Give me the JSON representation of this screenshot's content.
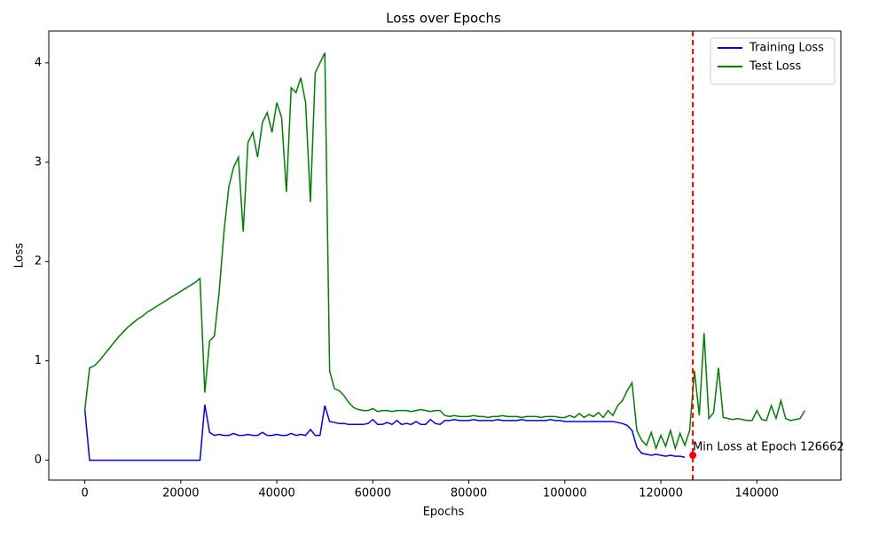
{
  "chart_data": {
    "type": "line",
    "title": "Loss over Epochs",
    "x_label": "Epochs",
    "y_label": "Loss",
    "x": [
      0,
      1000,
      2000,
      3000,
      4000,
      5000,
      6000,
      7000,
      8000,
      9000,
      10000,
      11000,
      12000,
      13000,
      14000,
      15000,
      16000,
      17000,
      18000,
      19000,
      20000,
      21000,
      22000,
      23000,
      24000,
      25000,
      26000,
      27000,
      28000,
      29000,
      30000,
      31000,
      32000,
      33000,
      34000,
      35000,
      36000,
      37000,
      38000,
      39000,
      40000,
      41000,
      42000,
      43000,
      44000,
      45000,
      46000,
      47000,
      48000,
      49000,
      50000,
      51000,
      52000,
      53000,
      54000,
      55000,
      56000,
      57000,
      58000,
      59000,
      60000,
      61000,
      62000,
      63000,
      64000,
      65000,
      66000,
      67000,
      68000,
      69000,
      70000,
      71000,
      72000,
      73000,
      74000,
      75000,
      76000,
      77000,
      78000,
      79000,
      80000,
      81000,
      82000,
      83000,
      84000,
      85000,
      86000,
      87000,
      88000,
      89000,
      90000,
      91000,
      92000,
      93000,
      94000,
      95000,
      96000,
      97000,
      98000,
      99000,
      100000,
      101000,
      102000,
      103000,
      104000,
      105000,
      106000,
      107000,
      108000,
      109000,
      110000,
      111000,
      112000,
      113000,
      114000,
      115000,
      116000,
      117000,
      118000,
      119000,
      120000,
      121000,
      122000,
      123000,
      124000,
      125000,
      126000,
      127000,
      128000,
      129000,
      130000,
      131000,
      132000,
      133000,
      134000,
      135000,
      136000,
      137000,
      138000,
      139000,
      140000,
      141000,
      142000,
      143000,
      144000,
      145000,
      146000,
      147000,
      148000,
      149000,
      150000
    ],
    "series": [
      {
        "name": "Training Loss",
        "color": "#0000ff",
        "values": [
          0.52,
          0,
          0,
          0,
          0,
          0,
          0,
          0,
          0,
          0,
          0,
          0,
          0,
          0,
          0,
          0,
          0,
          0,
          0,
          0,
          0,
          0,
          0,
          0,
          0,
          0.56,
          0.28,
          0.25,
          0.26,
          0.25,
          0.25,
          0.27,
          0.25,
          0.25,
          0.26,
          0.25,
          0.25,
          0.28,
          0.25,
          0.25,
          0.26,
          0.25,
          0.25,
          0.27,
          0.25,
          0.26,
          0.25,
          0.31,
          0.25,
          0.25,
          0.55,
          0.39,
          0.38,
          0.37,
          0.37,
          0.36,
          0.36,
          0.36,
          0.36,
          0.37,
          0.41,
          0.36,
          0.36,
          0.38,
          0.36,
          0.4,
          0.36,
          0.37,
          0.36,
          0.39,
          0.36,
          0.36,
          0.41,
          0.37,
          0.36,
          0.4,
          0.4,
          0.41,
          0.4,
          0.4,
          0.4,
          0.41,
          0.4,
          0.4,
          0.4,
          0.4,
          0.41,
          0.4,
          0.4,
          0.4,
          0.4,
          0.41,
          0.4,
          0.4,
          0.4,
          0.4,
          0.4,
          0.41,
          0.4,
          0.4,
          0.39,
          0.39,
          0.39,
          0.39,
          0.39,
          0.39,
          0.39,
          0.39,
          0.39,
          0.39,
          0.39,
          0.38,
          0.37,
          0.35,
          0.3,
          0.13,
          0.07,
          0.06,
          0.05,
          0.06,
          0.05,
          0.04,
          0.05,
          0.04,
          0.04,
          0.03,
          null,
          null,
          null,
          null,
          null,
          null,
          null,
          null,
          null,
          null,
          null,
          null,
          null,
          null,
          null,
          null,
          null,
          null,
          null,
          null,
          null,
          null,
          null,
          null,
          null
        ]
      },
      {
        "name": "Test Loss",
        "color": "#008000",
        "values": [
          0.5,
          0.93,
          0.95,
          1.0,
          1.06,
          1.12,
          1.18,
          1.24,
          1.29,
          1.34,
          1.38,
          1.42,
          1.45,
          1.49,
          1.52,
          1.55,
          1.58,
          1.61,
          1.64,
          1.67,
          1.7,
          1.73,
          1.76,
          1.79,
          1.83,
          0.68,
          1.2,
          1.25,
          1.7,
          2.3,
          2.75,
          2.95,
          3.05,
          2.3,
          3.2,
          3.3,
          3.05,
          3.4,
          3.5,
          3.3,
          3.6,
          3.45,
          2.7,
          3.75,
          3.7,
          3.85,
          3.6,
          2.6,
          3.9,
          4.0,
          4.1,
          0.9,
          0.72,
          0.7,
          0.65,
          0.58,
          0.53,
          0.51,
          0.5,
          0.5,
          0.52,
          0.49,
          0.5,
          0.5,
          0.49,
          0.5,
          0.5,
          0.5,
          0.49,
          0.5,
          0.51,
          0.5,
          0.49,
          0.5,
          0.5,
          0.45,
          0.44,
          0.45,
          0.44,
          0.44,
          0.44,
          0.45,
          0.44,
          0.44,
          0.43,
          0.44,
          0.44,
          0.45,
          0.44,
          0.44,
          0.44,
          0.43,
          0.44,
          0.44,
          0.44,
          0.43,
          0.44,
          0.44,
          0.44,
          0.43,
          0.43,
          0.45,
          0.43,
          0.47,
          0.43,
          0.46,
          0.44,
          0.48,
          0.43,
          0.5,
          0.45,
          0.55,
          0.6,
          0.7,
          0.78,
          0.3,
          0.2,
          0.15,
          0.28,
          0.12,
          0.25,
          0.14,
          0.3,
          0.12,
          0.27,
          0.15,
          0.3,
          0.9,
          0.45,
          1.28,
          0.42,
          0.48,
          0.93,
          0.43,
          0.42,
          0.41,
          0.42,
          0.41,
          0.4,
          0.4,
          0.5,
          0.41,
          0.4,
          0.55,
          0.42,
          0.6,
          0.42,
          0.4,
          0.41,
          0.42,
          0.5
        ]
      }
    ],
    "min_point": {
      "x": 126662,
      "y": 0.05,
      "label": "Min Loss at Epoch 126662",
      "color": "#ff0000"
    },
    "xlim": [
      -7500,
      157500
    ],
    "ylim": [
      -0.2,
      4.32
    ],
    "xticks": [
      0,
      20000,
      40000,
      60000,
      80000,
      100000,
      120000,
      140000
    ],
    "yticks": [
      0,
      1,
      2,
      3,
      4
    ],
    "grid": false,
    "legend": "upper right"
  }
}
